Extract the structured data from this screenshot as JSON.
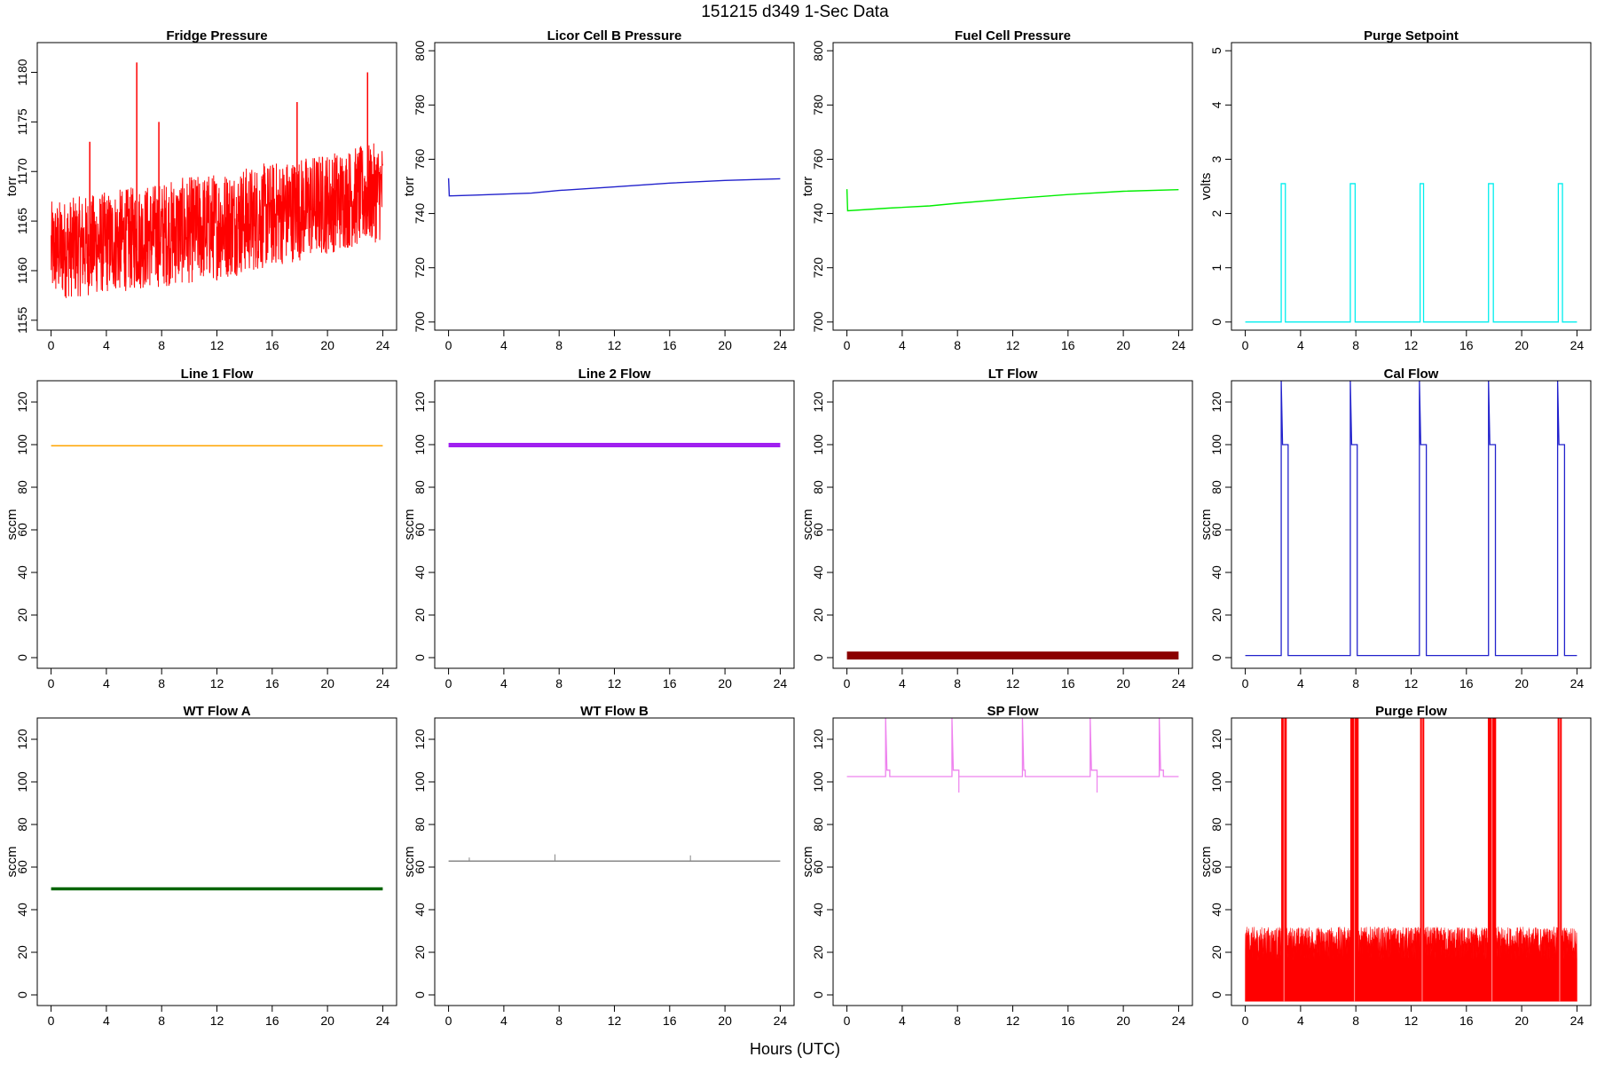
{
  "figure": {
    "title": "151215    d349    1-Sec Data",
    "xlabel": "Hours (UTC)"
  },
  "chart_data": [
    {
      "type": "line",
      "title": "Fridge Pressure",
      "xlabel": "",
      "ylabel": "torr",
      "xlim": [
        -1,
        25
      ],
      "ylim": [
        1154,
        1183
      ],
      "xticks": [
        0,
        4,
        8,
        12,
        16,
        20,
        24
      ],
      "yticks": [
        1155,
        1160,
        1165,
        1170,
        1175,
        1180
      ],
      "color": "#ff0000",
      "style": "noise-band",
      "baseline_lower": [
        [
          0,
          1157
        ],
        [
          12,
          1159
        ],
        [
          24,
          1163
        ]
      ],
      "baseline_upper": [
        [
          0,
          1167
        ],
        [
          12,
          1170
        ],
        [
          24,
          1173
        ]
      ],
      "spikes": [
        [
          2.8,
          1173
        ],
        [
          6.2,
          1181
        ],
        [
          7.8,
          1175
        ],
        [
          17.8,
          1177
        ],
        [
          22.9,
          1180
        ]
      ]
    },
    {
      "type": "line",
      "title": "Licor Cell B Pressure",
      "xlabel": "",
      "ylabel": "torr",
      "xlim": [
        -1,
        25
      ],
      "ylim": [
        697,
        803
      ],
      "xticks": [
        0,
        4,
        8,
        12,
        16,
        20,
        24
      ],
      "yticks": [
        700,
        720,
        740,
        760,
        780,
        800
      ],
      "color": "#2222cc",
      "points": [
        [
          0,
          753
        ],
        [
          0.05,
          746.5
        ],
        [
          2,
          746.8
        ],
        [
          6,
          747.5
        ],
        [
          8,
          748.5
        ],
        [
          12,
          749.8
        ],
        [
          16,
          751.2
        ],
        [
          20,
          752.2
        ],
        [
          24,
          752.8
        ]
      ]
    },
    {
      "type": "line",
      "title": "Fuel Cell Pressure",
      "xlabel": "",
      "ylabel": "torr",
      "xlim": [
        -1,
        25
      ],
      "ylim": [
        697,
        803
      ],
      "xticks": [
        0,
        4,
        8,
        12,
        16,
        20,
        24
      ],
      "yticks": [
        700,
        720,
        740,
        760,
        780,
        800
      ],
      "color": "#00ee00",
      "points": [
        [
          0,
          749
        ],
        [
          0.05,
          741
        ],
        [
          3,
          742
        ],
        [
          6,
          742.8
        ],
        [
          8,
          743.8
        ],
        [
          12,
          745.5
        ],
        [
          16,
          747
        ],
        [
          20,
          748.2
        ],
        [
          24,
          748.8
        ]
      ]
    },
    {
      "type": "line",
      "title": "Purge Setpoint",
      "xlabel": "",
      "ylabel": "volts",
      "xlim": [
        -1,
        25
      ],
      "ylim": [
        -0.15,
        5.15
      ],
      "xticks": [
        0,
        4,
        8,
        12,
        16,
        20,
        24
      ],
      "yticks": [
        0,
        1,
        2,
        3,
        4,
        5
      ],
      "color": "#00eeee",
      "baseline": 0,
      "pulses": [
        [
          2.6,
          2.9,
          2.55
        ],
        [
          7.6,
          7.95,
          2.55
        ],
        [
          12.65,
          12.9,
          2.55
        ],
        [
          17.6,
          17.95,
          2.55
        ],
        [
          22.65,
          22.95,
          2.55
        ]
      ]
    },
    {
      "type": "line",
      "title": "Line 1 Flow",
      "xlabel": "",
      "ylabel": "sccm",
      "xlim": [
        -1,
        25
      ],
      "ylim": [
        -5,
        130
      ],
      "xticks": [
        0,
        4,
        8,
        12,
        16,
        20,
        24
      ],
      "yticks": [
        0,
        20,
        40,
        60,
        80,
        100,
        120
      ],
      "color": "#ffa500",
      "points": [
        [
          0,
          99.5
        ],
        [
          24,
          99.5
        ]
      ],
      "stroke_width": 1.5
    },
    {
      "type": "line",
      "title": "Line 2 Flow",
      "xlabel": "",
      "ylabel": "sccm",
      "xlim": [
        -1,
        25
      ],
      "ylim": [
        -5,
        130
      ],
      "xticks": [
        0,
        4,
        8,
        12,
        16,
        20,
        24
      ],
      "yticks": [
        0,
        20,
        40,
        60,
        80,
        100,
        120
      ],
      "color": "#a020f0",
      "points": [
        [
          0,
          99.8
        ],
        [
          24,
          99.8
        ]
      ],
      "stroke_width": 5
    },
    {
      "type": "line",
      "title": "LT Flow",
      "xlabel": "",
      "ylabel": "sccm",
      "xlim": [
        -1,
        25
      ],
      "ylim": [
        -5,
        130
      ],
      "xticks": [
        0,
        4,
        8,
        12,
        16,
        20,
        24
      ],
      "yticks": [
        0,
        20,
        40,
        60,
        80,
        100,
        120
      ],
      "color": "#8b0000",
      "points": [
        [
          0,
          1
        ],
        [
          24,
          1
        ]
      ],
      "stroke_width": 9
    },
    {
      "type": "line",
      "title": "Cal Flow",
      "xlabel": "",
      "ylabel": "sccm",
      "xlim": [
        -1,
        25
      ],
      "ylim": [
        -5,
        130
      ],
      "xticks": [
        0,
        4,
        8,
        12,
        16,
        20,
        24
      ],
      "yticks": [
        0,
        20,
        40,
        60,
        80,
        100,
        120
      ],
      "color": "#2222cc",
      "baseline": 1,
      "pulses": [
        [
          2.6,
          3.1,
          100,
          130
        ],
        [
          7.6,
          8.1,
          100,
          130
        ],
        [
          12.6,
          13.1,
          100,
          130
        ],
        [
          17.6,
          18.1,
          100,
          130
        ],
        [
          22.6,
          23.1,
          100,
          130
        ]
      ]
    },
    {
      "type": "line",
      "title": "WT Flow A",
      "xlabel": "",
      "ylabel": "sccm",
      "xlim": [
        -1,
        25
      ],
      "ylim": [
        -5,
        130
      ],
      "xticks": [
        0,
        4,
        8,
        12,
        16,
        20,
        24
      ],
      "yticks": [
        0,
        20,
        40,
        60,
        80,
        100,
        120
      ],
      "color": "#006400",
      "points": [
        [
          0,
          49.8
        ],
        [
          24,
          49.8
        ]
      ],
      "stroke_width": 3.5
    },
    {
      "type": "line",
      "title": "WT Flow B",
      "xlabel": "",
      "ylabel": "sccm",
      "xlim": [
        -1,
        25
      ],
      "ylim": [
        -5,
        130
      ],
      "xticks": [
        0,
        4,
        8,
        12,
        16,
        20,
        24
      ],
      "yticks": [
        0,
        20,
        40,
        60,
        80,
        100,
        120
      ],
      "color": "#888888",
      "points": [
        [
          0,
          62.8
        ],
        [
          24,
          62.8
        ]
      ],
      "stroke_width": 1.5,
      "spikes": [
        [
          1.5,
          64.5
        ],
        [
          7.7,
          66
        ],
        [
          17.5,
          65.5
        ]
      ]
    },
    {
      "type": "line",
      "title": "SP Flow",
      "xlabel": "",
      "ylabel": "sccm",
      "xlim": [
        -1,
        25
      ],
      "ylim": [
        -5,
        130
      ],
      "xticks": [
        0,
        4,
        8,
        12,
        16,
        20,
        24
      ],
      "yticks": [
        0,
        20,
        40,
        60,
        80,
        100,
        120
      ],
      "color": "#ee82ee",
      "baseline": 102.5,
      "pulses": [
        [
          2.8,
          3.1,
          105.5,
          130
        ],
        [
          7.6,
          8.1,
          105.5,
          130
        ],
        [
          12.7,
          12.9,
          105.5,
          130
        ],
        [
          17.6,
          18.1,
          105.5,
          130
        ],
        [
          22.6,
          22.9,
          105.5,
          130
        ]
      ],
      "dips": [
        [
          8.1,
          95
        ],
        [
          18.1,
          95
        ]
      ]
    },
    {
      "type": "area",
      "title": "Purge Flow",
      "xlabel": "",
      "ylabel": "sccm",
      "xlim": [
        -1,
        25
      ],
      "ylim": [
        -5,
        130
      ],
      "xticks": [
        0,
        4,
        8,
        12,
        16,
        20,
        24
      ],
      "yticks": [
        0,
        20,
        40,
        60,
        80,
        100,
        120
      ],
      "color": "#ff0000",
      "band": [
        -3,
        32
      ],
      "peaks": [
        [
          2.6,
          3.0
        ],
        [
          7.6,
          8.2
        ],
        [
          12.65,
          12.95
        ],
        [
          17.55,
          18.15
        ],
        [
          22.6,
          22.9
        ]
      ],
      "peak_value": 130
    }
  ]
}
